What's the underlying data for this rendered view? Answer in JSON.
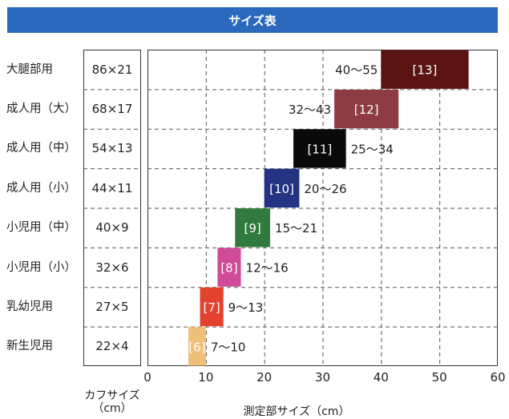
{
  "title": "サイズ表",
  "cuff_axis_label": [
    "カフサイズ",
    "（cm）"
  ],
  "measure_axis_label": "測定部サイズ（cm）",
  "chart_data": {
    "type": "bar",
    "orientation": "horizontal-range",
    "title": "サイズ表",
    "xlabel": "測定部サイズ（cm）",
    "xlim": [
      0,
      60
    ],
    "xticks": [
      0,
      10,
      20,
      30,
      40,
      50,
      60
    ],
    "grid": true,
    "categories": [
      "大腿部用",
      "成人用（大）",
      "成人用（中）",
      "成人用（小）",
      "小児用（中）",
      "小児用（小）",
      "乳幼児用",
      "新生児用"
    ],
    "cuff_sizes": [
      "86×21",
      "68×17",
      "54×13",
      "44×11",
      "40×9",
      "32×6",
      "27×5",
      "22×4"
    ],
    "bars": [
      {
        "code": "[13]",
        "start": 40,
        "end": 55,
        "range_label": "40～55",
        "color": "#5b1414",
        "code_color": "#ffffff",
        "label_side": "left"
      },
      {
        "code": "[12]",
        "start": 32,
        "end": 43,
        "range_label": "32～43",
        "color": "#8d3b45",
        "code_color": "#ffffff",
        "label_side": "left"
      },
      {
        "code": "[11]",
        "start": 25,
        "end": 34,
        "range_label": "25～34",
        "color": "#0a0a0a",
        "code_color": "#ffffff",
        "label_side": "right"
      },
      {
        "code": "[10]",
        "start": 20,
        "end": 26,
        "range_label": "20～26",
        "color": "#253482",
        "code_color": "#ffffff",
        "label_side": "right"
      },
      {
        "code": "[9]",
        "start": 15,
        "end": 21,
        "range_label": "15～21",
        "color": "#2f7a3c",
        "code_color": "#ffffff",
        "label_side": "right"
      },
      {
        "code": "[8]",
        "start": 12,
        "end": 16,
        "range_label": "12～16",
        "color": "#cf4b97",
        "code_color": "#ffffff",
        "label_side": "right"
      },
      {
        "code": "[7]",
        "start": 9,
        "end": 13,
        "range_label": "9～13",
        "color": "#e2422e",
        "code_color": "#ffffff",
        "label_side": "right"
      },
      {
        "code": "[6]",
        "start": 7,
        "end": 10,
        "range_label": "7～10",
        "color": "#efc078",
        "code_color": "#ffffff",
        "label_side": "right"
      }
    ]
  }
}
